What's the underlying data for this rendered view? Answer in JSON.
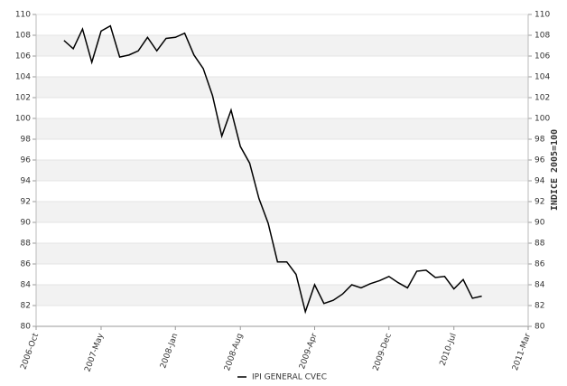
{
  "chart_data": {
    "type": "line",
    "y2_label": "INDICE 2005=100",
    "x": [
      "2007-Jan",
      "2007-Feb",
      "2007-Mar",
      "2007-Apr",
      "2007-May",
      "2007-Jun",
      "2007-Jul",
      "2007-Aug",
      "2007-Sep",
      "2007-Oct",
      "2007-Nov",
      "2007-Dec",
      "2008-Jan",
      "2008-Feb",
      "2008-Mar",
      "2008-Apr",
      "2008-May",
      "2008-Jun",
      "2008-Jul",
      "2008-Aug",
      "2008-Sep",
      "2008-Oct",
      "2008-Nov",
      "2008-Dec",
      "2009-Jan",
      "2009-Feb",
      "2009-Mar",
      "2009-Apr",
      "2009-May",
      "2009-Jun",
      "2009-Jul",
      "2009-Aug",
      "2009-Sep",
      "2009-Oct",
      "2009-Nov",
      "2009-Dec",
      "2010-Jan",
      "2010-Feb",
      "2010-Mar",
      "2010-Apr",
      "2010-May",
      "2010-Jun",
      "2010-Jul",
      "2010-Aug",
      "2010-Sep",
      "2010-Oct"
    ],
    "series": [
      {
        "name": "IPI GENERAL CVEC",
        "color": "#000000",
        "values": [
          107.5,
          106.7,
          108.6,
          105.4,
          108.4,
          108.9,
          105.9,
          106.1,
          106.5,
          107.8,
          106.5,
          107.7,
          107.8,
          108.2,
          106.1,
          104.8,
          102.2,
          98.3,
          100.8,
          97.3,
          95.7,
          92.3,
          89.9,
          86.2,
          86.2,
          85.0,
          81.4,
          84.0,
          82.2,
          82.5,
          83.1,
          84.0,
          83.7,
          84.1,
          84.4,
          84.8,
          84.2,
          83.7,
          85.3,
          85.4,
          84.7,
          84.8,
          83.6,
          84.5,
          82.7,
          82.9
        ]
      }
    ],
    "xlim": [
      "2006-Oct",
      "2011-Mar"
    ],
    "xticks": [
      "2006-Oct",
      "2007-May",
      "2008-Jan",
      "2008-Aug",
      "2009-Apr",
      "2009-Dec",
      "2010-Jul",
      "2011-Mar"
    ],
    "ylim": [
      80,
      110
    ],
    "yticks": [
      80,
      82,
      84,
      86,
      88,
      90,
      92,
      94,
      96,
      98,
      100,
      102,
      104,
      106,
      108,
      110
    ],
    "y2lim": [
      80,
      110
    ],
    "y2ticks": [
      80,
      82,
      84,
      86,
      88,
      90,
      92,
      94,
      96,
      98,
      100,
      102,
      104,
      106,
      108,
      110
    ],
    "grid": true,
    "legend": "bottom"
  }
}
